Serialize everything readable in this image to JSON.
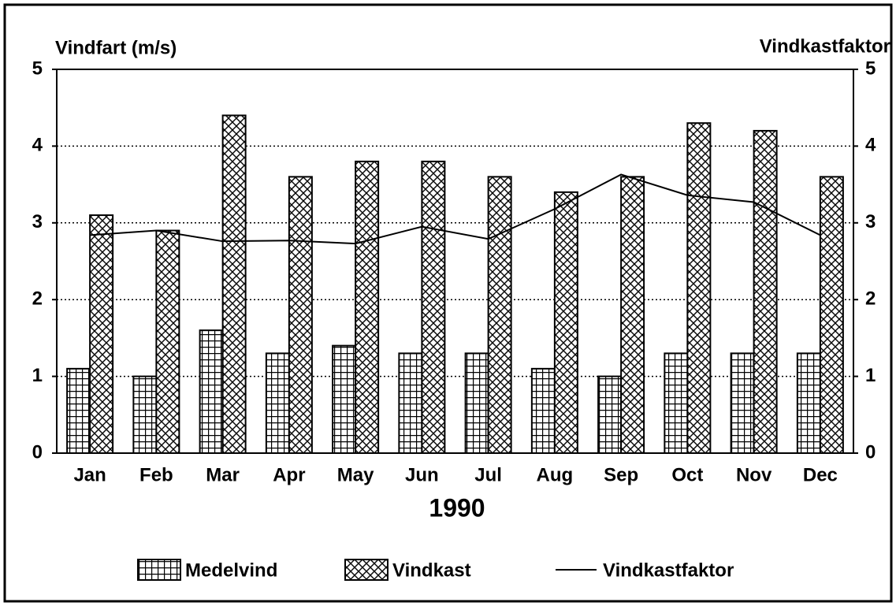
{
  "chart_data": {
    "type": "bar",
    "y_label": "Vindfart (m/s)",
    "y2_label": "Vindkastfaktor",
    "x_label": "1990",
    "categories": [
      "Jan",
      "Feb",
      "Mar",
      "Apr",
      "May",
      "Jun",
      "Jul",
      "Aug",
      "Sep",
      "Oct",
      "Nov",
      "Dec"
    ],
    "series": [
      {
        "name": "Medelvind",
        "color": "#000000",
        "values": [
          1.1,
          1.0,
          1.6,
          1.3,
          1.4,
          1.3,
          1.3,
          1.1,
          1.0,
          1.3,
          1.3,
          1.3
        ]
      },
      {
        "name": "Vindkast",
        "color": "#000000",
        "values": [
          3.1,
          2.9,
          4.4,
          3.6,
          3.8,
          3.8,
          3.6,
          3.4,
          3.6,
          4.3,
          4.2,
          3.6
        ]
      },
      {
        "name": "Vindkastfaktor",
        "color": "#000000",
        "type": "line",
        "axis": "y2",
        "values": [
          2.84,
          2.9,
          2.76,
          2.77,
          2.73,
          2.95,
          2.79,
          3.18,
          3.63,
          3.36,
          3.27,
          2.84
        ]
      }
    ],
    "ylim": [
      0,
      5
    ],
    "yticks": [
      0,
      1,
      2,
      3,
      4,
      5
    ],
    "y2lim": [
      0,
      5
    ],
    "y2ticks": [
      0,
      1,
      2,
      3,
      4,
      5
    ],
    "grid": true
  }
}
